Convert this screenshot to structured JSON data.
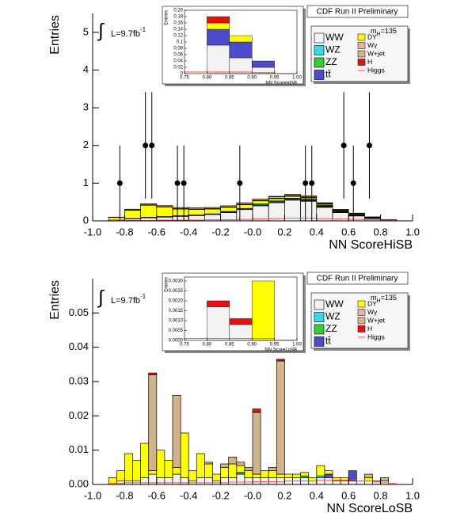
{
  "chart_data": [
    {
      "type": "histogram",
      "experiment": "CDF Run II Preliminary",
      "mass_label": {
        "m": "m",
        "sub": "H",
        "rest": "=135"
      },
      "lumi": {
        "integral": "∫",
        "text": "L=9.7fb",
        "sup": "-1"
      },
      "xlabel": "NN ScoreHiSB",
      "ylabel": "Entries",
      "xlim": [
        -1,
        1
      ],
      "ylim": [
        0,
        5.5
      ],
      "xticks": [
        {
          "value": -1,
          "label": "-1.0"
        },
        -0.8,
        -0.6,
        -0.4,
        -0.2,
        {
          "value": 0,
          "label": "-0.0"
        },
        0.2,
        0.4,
        0.6,
        0.8,
        {
          "value": 1,
          "label": "1.0"
        }
      ],
      "yticks": [
        0,
        1,
        2,
        3,
        4,
        5
      ],
      "bins": [
        -0.9,
        -0.8,
        -0.7,
        -0.6,
        -0.5,
        -0.4,
        -0.3,
        -0.2,
        -0.1,
        0,
        0.1,
        0.2,
        0.3,
        0.4,
        0.5,
        0.6,
        0.7,
        0.8,
        0.9
      ],
      "series": [
        {
          "name": "WW",
          "color": "#f2f2f2",
          "values": [
            0.02,
            0.05,
            0.08,
            0.1,
            0.12,
            0.14,
            0.17,
            0.22,
            0.3,
            0.4,
            0.48,
            0.55,
            0.52,
            0.36,
            0.22,
            0.13,
            0.06,
            0.02
          ]
        },
        {
          "name": "WZ",
          "color": "#33dde8",
          "values": [
            0,
            0,
            0.005,
            0.005,
            0.005,
            0.005,
            0.005,
            0.01,
            0.01,
            0.01,
            0.01,
            0.01,
            0.01,
            0.01,
            0.005,
            0.005,
            0,
            0
          ]
        },
        {
          "name": "ZZ",
          "color": "#33cc33",
          "values": [
            0,
            0.01,
            0.01,
            0.01,
            0.01,
            0.01,
            0.01,
            0.02,
            0.02,
            0.03,
            0.03,
            0.03,
            0.02,
            0.02,
            0.01,
            0.01,
            0.01,
            0
          ]
        },
        {
          "name": "tt̄",
          "color": "#4b4bcc",
          "values": [
            0,
            0,
            0,
            0,
            0,
            0,
            0,
            0,
            0,
            0.01,
            0.01,
            0.01,
            0.02,
            0.02,
            0.02,
            0.02,
            0.01,
            0.005
          ]
        },
        {
          "name": "DY",
          "color": "#ffff00",
          "values": [
            0.07,
            0.22,
            0.32,
            0.25,
            0.18,
            0.15,
            0.13,
            0.11,
            0.1,
            0.08,
            0.06,
            0.05,
            0.04,
            0.03,
            0.02,
            0.01,
            0.01,
            0
          ]
        },
        {
          "name": "Wγ",
          "color": "#e6b3a8",
          "values": [
            0,
            0.01,
            0.01,
            0.01,
            0.01,
            0.01,
            0.01,
            0.01,
            0.01,
            0.01,
            0.01,
            0.01,
            0.01,
            0.01,
            0,
            0,
            0,
            0
          ]
        },
        {
          "name": "W+jet",
          "color": "#d2b48c",
          "values": [
            0.01,
            0.02,
            0.03,
            0.03,
            0.03,
            0.03,
            0.03,
            0.03,
            0.04,
            0.04,
            0.04,
            0.03,
            0.03,
            0.02,
            0.02,
            0.02,
            0.01,
            0.005
          ]
        },
        {
          "name": "H",
          "color": "#e81010",
          "values": [
            0,
            0,
            0,
            0,
            0,
            0,
            0,
            0,
            0,
            0,
            0.01,
            0.01,
            0.01,
            0.01,
            0.01,
            0.01,
            0.005,
            0.005
          ]
        }
      ],
      "line_series": {
        "name": "Higgs",
        "color": "#ff5050",
        "values": [
          0.01,
          0.01,
          0.01,
          0.02,
          0.02,
          0.02,
          0.03,
          0.03,
          0.04,
          0.05,
          0.06,
          0.07,
          0.07,
          0.06,
          0.05,
          0.04,
          0.03,
          0.02
        ]
      },
      "data": {
        "x": [
          -0.83,
          -0.67,
          -0.63,
          -0.47,
          -0.43,
          -0.08,
          0.33,
          0.37,
          0.57,
          0.63,
          0.73
        ],
        "values": [
          1,
          2,
          2,
          1,
          1,
          1,
          1,
          1,
          2,
          1,
          2
        ],
        "errors": [
          1,
          1.41,
          1.41,
          1,
          1,
          1,
          1,
          1,
          1.41,
          1,
          1.41
        ]
      },
      "inset": {
        "xlabel": "NN ScoreHiSB",
        "ylabel": "Entries",
        "xlim": [
          0.75,
          1
        ],
        "ylim": [
          0,
          0.2
        ],
        "xticks": [
          0.75,
          {
            "value": 0.8,
            "label": "0.80"
          },
          0.85,
          {
            "value": 0.9,
            "label": "0.90"
          },
          0.95,
          {
            "value": 1,
            "label": "1.00"
          }
        ],
        "yticks": [
          0,
          0.02,
          0.04,
          0.06,
          0.08,
          0.1,
          0.12,
          0.14,
          0.16,
          0.18,
          {
            "value": 0.2,
            "label": "0.20"
          }
        ],
        "bins": [
          0.75,
          0.8,
          0.85,
          0.9,
          0.95,
          1
        ],
        "series": [
          {
            "color": "#f2f2f2",
            "values": [
              0,
              0.09,
              0.05,
              0.02,
              0
            ]
          },
          {
            "color": "#4b4bcc",
            "values": [
              0,
              0.05,
              0.05,
              0.02,
              0
            ]
          },
          {
            "color": "#ffff00",
            "values": [
              0,
              0.02,
              0.02,
              0,
              0
            ]
          },
          {
            "color": "#e81010",
            "values": [
              0,
              0.02,
              0,
              0,
              0
            ]
          }
        ],
        "line": {
          "color": "#ff5050",
          "values": [
            0.005,
            0.005,
            0.005,
            0.003,
            0
          ]
        }
      }
    },
    {
      "type": "histogram",
      "experiment": "CDF Run II Preliminary",
      "mass_label": {
        "m": "m",
        "sub": "H",
        "rest": "=135"
      },
      "lumi": {
        "integral": "∫",
        "text": "L=9.7fb",
        "sup": "-1"
      },
      "xlabel": "NN ScoreLoSB",
      "ylabel": "Entries",
      "xlim": [
        -1,
        1
      ],
      "ylim": [
        0,
        0.06
      ],
      "xticks": [
        {
          "value": -1,
          "label": "-1.0"
        },
        -0.8,
        -0.6,
        -0.4,
        -0.2,
        {
          "value": 0,
          "label": "-0.0"
        },
        0.2,
        0.4,
        0.6,
        0.8,
        {
          "value": 1,
          "label": "1.0"
        }
      ],
      "yticks": [
        {
          "value": 0,
          "label": "0.00"
        },
        0.01,
        0.02,
        0.03,
        0.04,
        0.05
      ],
      "bins": [
        -0.9,
        -0.85,
        -0.8,
        -0.75,
        -0.7,
        -0.65,
        -0.6,
        -0.55,
        -0.5,
        -0.45,
        -0.4,
        -0.35,
        -0.3,
        -0.25,
        -0.2,
        -0.15,
        -0.1,
        -0.05,
        0,
        0.05,
        0.1,
        0.15,
        0.2,
        0.25,
        0.3,
        0.35,
        0.4,
        0.45,
        0.5,
        0.55,
        0.6,
        0.65,
        0.7,
        0.75,
        0.8,
        0.85,
        0.9
      ],
      "series": [
        {
          "name": "WW",
          "color": "#f2f2f2",
          "values": [
            0,
            0.001,
            0.001,
            0.001,
            0.002,
            0.003,
            0.002,
            0.002,
            0.003,
            0.002,
            0.001,
            0.002,
            0.002,
            0.001,
            0.002,
            0.002,
            0.003,
            0.002,
            0.002,
            0.002,
            0.002,
            0.002,
            0.002,
            0.002,
            0.002,
            0.001,
            0.002,
            0.002,
            0.001,
            0.001,
            0.001,
            0.001,
            0.001,
            0.001,
            0.001,
            0
          ]
        },
        {
          "name": "WZ",
          "color": "#33dde8",
          "values": [
            0,
            0,
            0,
            0,
            0,
            0,
            0,
            0,
            0,
            0,
            0,
            0,
            0,
            0,
            0,
            0,
            0,
            0,
            0,
            0,
            0,
            0,
            0,
            0,
            0,
            0,
            0.0005,
            0,
            0,
            0,
            0,
            0,
            0,
            0,
            0,
            0
          ]
        },
        {
          "name": "ZZ",
          "color": "#33cc33",
          "values": [
            0,
            0,
            0,
            0,
            0,
            0,
            0,
            0,
            0,
            0,
            0,
            0,
            0,
            0,
            0,
            0,
            0.0005,
            0,
            0,
            0,
            0,
            0,
            0,
            0,
            0.0005,
            0,
            0,
            0,
            0,
            0,
            0,
            0,
            0,
            0,
            0,
            0
          ]
        },
        {
          "name": "tt̄",
          "color": "#4b4bcc",
          "values": [
            0,
            0,
            0,
            0,
            0,
            0,
            0,
            0,
            0,
            0,
            0,
            0,
            0,
            0,
            0,
            0,
            0,
            0,
            0,
            0,
            0,
            0,
            0,
            0,
            0,
            0,
            0,
            0.001,
            0,
            0,
            0.003,
            0,
            0,
            0,
            0,
            0
          ]
        },
        {
          "name": "DY",
          "color": "#ffff00",
          "values": [
            0.002,
            0.003,
            0.008,
            0.006,
            0.01,
            0.001,
            0.008,
            0.005,
            0.002,
            0.013,
            0.003,
            0.007,
            0.004,
            0.002,
            0.003,
            0.004,
            0.002,
            0.002,
            0.001,
            0.002,
            0.002,
            0.001,
            0.001,
            0.001,
            0.001,
            0.001,
            0.003,
            0.001,
            0.001,
            0.001,
            0,
            0,
            0.001,
            0,
            0,
            0
          ]
        },
        {
          "name": "Wγ",
          "color": "#e6b3a8",
          "values": [
            0,
            0,
            0,
            0,
            0,
            0,
            0,
            0,
            0,
            0,
            0,
            0,
            0.0005,
            0,
            0,
            0,
            0,
            0,
            0,
            0,
            0,
            0,
            0,
            0,
            0,
            0,
            0,
            0,
            0,
            0,
            0,
            0,
            0,
            0,
            0,
            0
          ]
        },
        {
          "name": "W+jet",
          "color": "#d2b48c",
          "values": [
            0,
            0,
            0,
            0,
            0,
            0.028,
            0,
            0,
            0.021,
            0,
            0,
            0,
            0,
            0,
            0.001,
            0.002,
            0.001,
            0.001,
            0.018,
            0,
            0.001,
            0.033,
            0,
            0,
            0,
            0,
            0,
            0,
            0,
            0,
            0,
            0,
            0.001,
            0,
            0.001,
            0
          ]
        },
        {
          "name": "H",
          "color": "#e81010",
          "values": [
            0,
            0,
            0,
            0,
            0,
            0.0005,
            0,
            0,
            0,
            0,
            0,
            0,
            0,
            0,
            0,
            0,
            0,
            0,
            0.001,
            0,
            0,
            0.0005,
            0,
            0,
            0,
            0,
            0,
            0,
            0,
            0,
            0,
            0,
            0,
            0,
            0,
            0
          ]
        }
      ],
      "line_series": {
        "name": "Higgs",
        "color": "#ff5050",
        "values": [
          0.0003,
          0.0003,
          0.0005,
          0.0005,
          0.0005,
          0.0005,
          0.0005,
          0.0005,
          0.0005,
          0.0005,
          0.0005,
          0.0005,
          0.0005,
          0.0005,
          0.0005,
          0.0007,
          0.0007,
          0.0007,
          0.0008,
          0.0008,
          0.0008,
          0.0008,
          0.001,
          0.001,
          0.001,
          0.001,
          0.0012,
          0.0012,
          0.0012,
          0.0012,
          0.0012,
          0.001,
          0.001,
          0.0008,
          0.0005,
          0.0003
        ]
      },
      "inset": {
        "xlabel": "NN ScoreLoSB",
        "ylabel": "Entries",
        "xlim": [
          0.75,
          1
        ],
        "ylim": [
          0,
          0.0032
        ],
        "xticks": [
          0.75,
          {
            "value": 0.8,
            "label": "0.80"
          },
          0.85,
          {
            "value": 0.9,
            "label": "0.90"
          },
          0.95,
          {
            "value": 1,
            "label": "1.00"
          }
        ],
        "yticks": [
          {
            "value": 0,
            "label": "0.0000"
          },
          0.0005,
          {
            "value": 0.001,
            "label": "0.0010"
          },
          0.0015,
          {
            "value": 0.002,
            "label": "0.0020"
          },
          0.0025,
          {
            "value": 0.003,
            "label": "0.0030"
          }
        ],
        "bins": [
          0.75,
          0.8,
          0.85,
          0.9,
          0.95,
          1
        ],
        "series": [
          {
            "color": "#f2f2f2",
            "values": [
              0,
              0.0017,
              0.0008,
              0,
              0
            ]
          },
          {
            "color": "#ffff00",
            "values": [
              0,
              0,
              0,
              0.003,
              0
            ]
          },
          {
            "color": "#e81010",
            "values": [
              0,
              0.0003,
              0.0003,
              0,
              0
            ]
          }
        ],
        "line": {
          "color": "#ff5050",
          "values": [
            0.0001,
            0.0001,
            0.0001,
            0.0001,
            0
          ]
        }
      }
    }
  ]
}
